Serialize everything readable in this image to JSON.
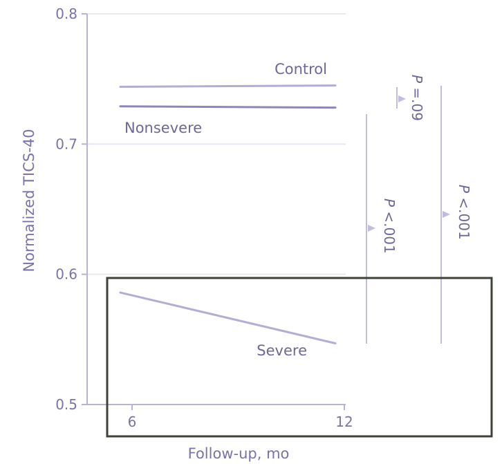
{
  "chart_data": {
    "type": "line",
    "xlabel": "Follow-up, mo",
    "ylabel": "Normalized TICS-40",
    "x_ticks": [
      6,
      12
    ],
    "y_ticks": [
      0.5,
      0.6,
      0.7,
      0.8
    ],
    "xlim": [
      5,
      12
    ],
    "ylim": [
      0.5,
      0.8
    ],
    "grid": true,
    "series": [
      {
        "name": "Control",
        "x": [
          6,
          12
        ],
        "values": [
          0.744,
          0.745
        ],
        "color": "#b4acd4"
      },
      {
        "name": "Nonsevere",
        "x": [
          6,
          12
        ],
        "values": [
          0.729,
          0.728
        ],
        "color": "#8e86b8"
      },
      {
        "name": "Severe",
        "x": [
          6,
          12
        ],
        "values": [
          0.586,
          0.547
        ],
        "color": "#b4acd4"
      }
    ],
    "comparisons": [
      {
        "label": "P =.09",
        "prefix": "P",
        "text": " =.09"
      },
      {
        "label": "P <.001",
        "prefix": "P",
        "text": " <.001"
      },
      {
        "label": "P <.001",
        "prefix": "P",
        "text": " <.001"
      }
    ],
    "colors": {
      "axis": "#b9b2d6",
      "grid": "#ebe8f3",
      "highlight_box": "#3d4337"
    }
  }
}
